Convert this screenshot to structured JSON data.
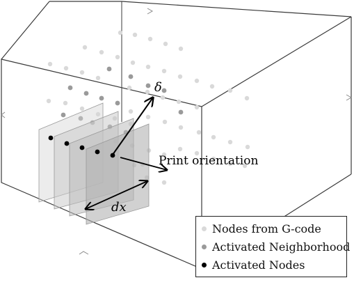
{
  "labels": {
    "delta": "δ",
    "print_orientation": "Print orientation",
    "dx": "dx"
  },
  "legend": {
    "items": [
      {
        "label": "Nodes from G-code",
        "color": "#d9d9d9"
      },
      {
        "label": "Activated Neighborhood",
        "color": "#9a9a9a"
      },
      {
        "label": "Activated Nodes",
        "color": "#000000"
      }
    ]
  },
  "colors": {
    "box_edge": "#3a3a3a",
    "plane_fill": "#c4c4c4",
    "plane_edge": "#999999"
  }
}
